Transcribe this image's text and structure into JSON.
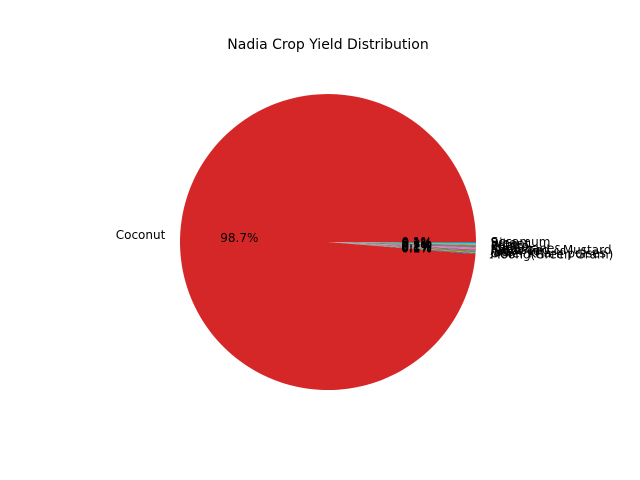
{
  "chart_data": {
    "type": "pie",
    "title": "Nadia Crop Yield Distribution",
    "start_angle_deg": 0,
    "counterclock": true,
    "slices": [
      {
        "label": "Coconut",
        "value": 98.7,
        "pct_label": "98.7%",
        "color": "#d62728"
      },
      {
        "label": "Moong(Green Gram)",
        "value": 0.1,
        "pct_label": "0.1%",
        "color": "#1f77b4"
      },
      {
        "label": "Other Kharif pulses",
        "value": 0.1,
        "pct_label": "0.1%",
        "color": "#ff7f0e"
      },
      {
        "label": "Jute",
        "value": 0.1,
        "pct_label": "0.1%",
        "color": "#2ca02c"
      },
      {
        "label": "Arhar/Tur",
        "value": 0.1,
        "pct_label": "0.1%",
        "color": "#9467bd"
      },
      {
        "label": "Rapeseed &Mustard",
        "value": 0.1,
        "pct_label": "0.1%",
        "color": "#8c564b"
      },
      {
        "label": "Sugarcane",
        "value": 0.2,
        "pct_label": "0.2%",
        "color": "#e377c2"
      },
      {
        "label": "Potato",
        "value": 0.3,
        "pct_label": "0.3%",
        "color": "#7f7f7f"
      },
      {
        "label": "Wheat",
        "value": 0.1,
        "pct_label": "0.1%",
        "color": "#bcbd22"
      },
      {
        "label": "Rice",
        "value": 0.1,
        "pct_label": "0.1%",
        "color": "#17becf"
      },
      {
        "label": "Sesamum",
        "value": 0.1,
        "pct_label": "0.1%",
        "color": "#1f77b4"
      }
    ]
  }
}
